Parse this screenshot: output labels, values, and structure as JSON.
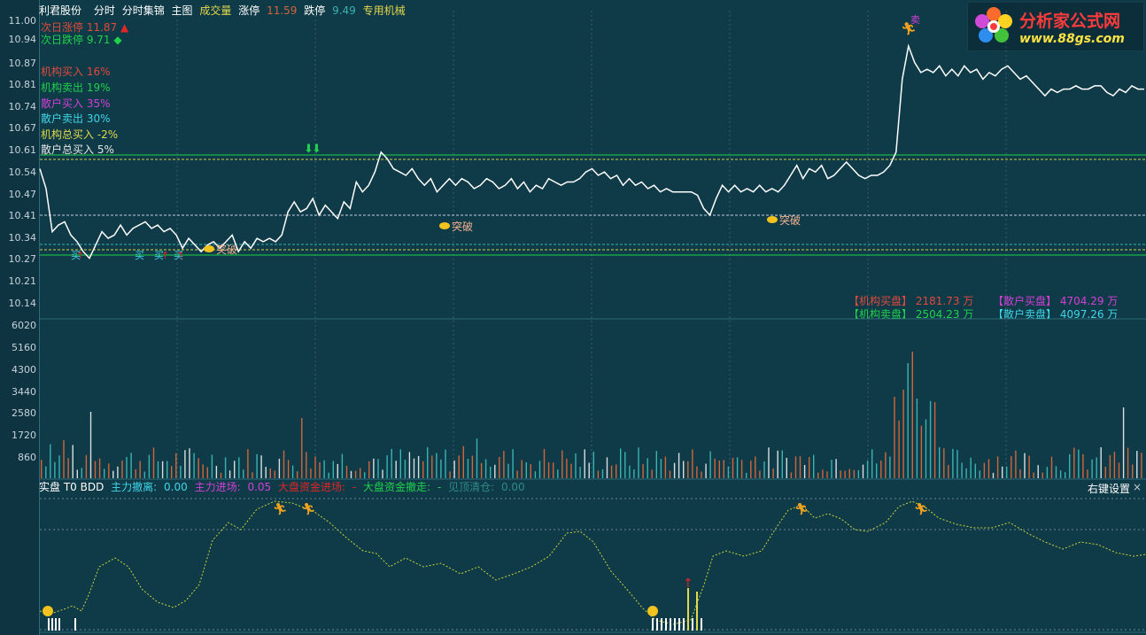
{
  "header": {
    "stock_name": "利君股份",
    "menu_1": "分时",
    "menu_2": "分时集锦",
    "menu_3": "主图",
    "volume_label": "成交量",
    "limit_up_label": "涨停",
    "limit_up_value": "11.59",
    "limit_down_label": "跌停",
    "limit_down_value": "9.49",
    "sector": "专用机械"
  },
  "logo": {
    "title": "分析家公式网",
    "url": "www.88gs.com"
  },
  "price_axis": [
    "11.00",
    "10.94",
    "10.87",
    "10.81",
    "10.74",
    "10.67",
    "10.61",
    "10.54",
    "10.47",
    "10.41",
    "10.34",
    "10.27",
    "10.21",
    "10.14"
  ],
  "volume_axis": [
    "6020",
    "5160",
    "4300",
    "3440",
    "2580",
    "1720",
    "860"
  ],
  "left_info": {
    "next_up": "次日涨停 11.87",
    "next_down": "次日跌停 9.71",
    "inst_buy": "机构买入 16%",
    "inst_sell": "机构卖出 19%",
    "retail_buy": "散户买入 35%",
    "retail_sell": "散户卖出 30%",
    "inst_total": "机构总买入 -2%",
    "retail_total": "散户总买入 5%"
  },
  "breakout_label": "突破",
  "marks": {
    "buy_char": "买",
    "sell_char": "卖"
  },
  "flow_stats": {
    "inst_buy_label": "【机构买盘】",
    "inst_buy_value": "2181.73 万",
    "inst_sell_label": "【机构卖盘】",
    "inst_sell_value": "2504.23 万",
    "retail_buy_label": "【散户买盘】",
    "retail_buy_value": "4704.29 万",
    "retail_sell_label": "【散户卖盘】",
    "retail_sell_value": "4097.26 万"
  },
  "sub_panel": {
    "name": "实盘 T0 BDD",
    "main_exit_label": "主力撤离:",
    "main_exit_value": "0.00",
    "main_enter_label": "主力进场:",
    "main_enter_value": "0.05",
    "market_in_label": "大盘资金进场:",
    "market_in_value": "-",
    "market_out_label": "大盘资金撤走:",
    "market_out_value": "-",
    "clear_label": "见顶清仓:",
    "clear_value": "0.00",
    "settings": "右键设置",
    "close": "×"
  },
  "colors": {
    "bg": "#0f3a47",
    "price_line": "#ffffff",
    "vol_up": "#d2663a",
    "vol_down": "#3ab3b3",
    "vol_neutral": "#d8e0e0",
    "dashed_ref": "#d7d24a",
    "green_ref": "#1fd24b",
    "sub_line": "#c8d43a"
  },
  "chart_data": {
    "type": "line",
    "title": "利君股份 分时",
    "ylim": [
      10.14,
      11.0
    ],
    "series": [
      {
        "name": "price",
        "values": [
          10.55,
          10.49,
          10.36,
          10.38,
          10.39,
          10.35,
          10.33,
          10.3,
          10.28,
          10.32,
          10.36,
          10.34,
          10.35,
          10.38,
          10.35,
          10.37,
          10.38,
          10.39,
          10.37,
          10.38,
          10.36,
          10.37,
          10.35,
          10.31,
          10.34,
          10.32,
          10.3,
          10.32,
          10.33,
          10.31,
          10.33,
          10.35,
          10.3,
          10.33,
          10.31,
          10.34,
          10.33,
          10.34,
          10.33,
          10.35,
          10.42,
          10.45,
          10.42,
          10.43,
          10.46,
          10.41,
          10.44,
          10.42,
          10.4,
          10.45,
          10.43,
          10.51,
          10.48,
          10.5,
          10.54,
          10.6,
          10.58,
          10.55,
          10.54,
          10.53,
          10.55,
          10.52,
          10.5,
          10.52,
          10.48,
          10.5,
          10.52,
          10.5,
          10.52,
          10.51,
          10.49,
          10.5,
          10.52,
          10.51,
          10.49,
          10.5,
          10.52,
          10.49,
          10.51,
          10.48,
          10.5,
          10.49,
          10.52,
          10.51,
          10.5,
          10.51,
          10.51,
          10.52,
          10.54,
          10.55,
          10.53,
          10.54,
          10.52,
          10.53,
          10.5,
          10.52,
          10.5,
          10.51,
          10.49,
          10.5,
          10.48,
          10.49,
          10.48,
          10.48,
          10.48,
          10.48,
          10.47,
          10.43,
          10.41,
          10.46,
          10.5,
          10.48,
          10.5,
          10.48,
          10.49,
          10.48,
          10.5,
          10.48,
          10.49,
          10.48,
          10.5,
          10.53,
          10.56,
          10.52,
          10.55,
          10.54,
          10.56,
          10.52,
          10.53,
          10.55,
          10.57,
          10.55,
          10.53,
          10.52,
          10.53,
          10.53,
          10.54,
          10.56,
          10.6,
          10.82,
          10.92,
          10.87,
          10.84,
          10.85,
          10.84,
          10.86,
          10.83,
          10.85,
          10.83,
          10.86,
          10.84,
          10.85,
          10.82,
          10.84,
          10.83,
          10.85,
          10.86,
          10.84,
          10.82,
          10.83,
          10.81,
          10.79,
          10.77,
          10.79,
          10.78,
          10.79,
          10.79,
          10.8,
          10.79,
          10.79,
          10.8,
          10.8,
          10.78,
          10.77,
          10.79,
          10.78,
          10.8,
          10.79,
          10.79
        ]
      }
    ]
  }
}
